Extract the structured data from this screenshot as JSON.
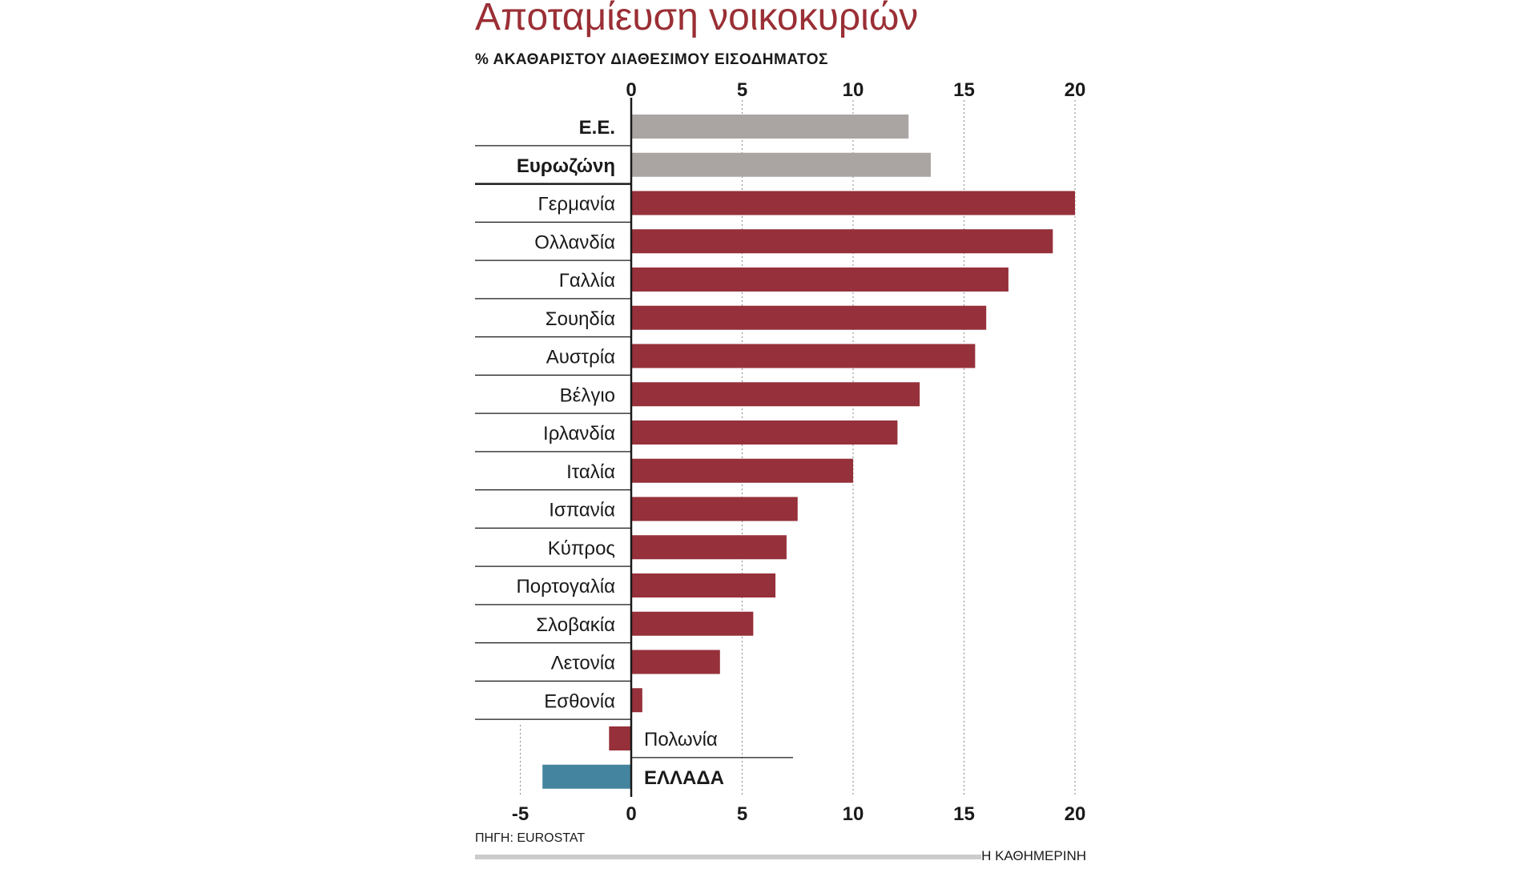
{
  "header": {
    "title": "Αποταμίευση νοικοκυριών",
    "subtitle": "% ΑΚΑΘΑΡΙΣΤΟΥ ΔΙΑΘΕΣΙΜΟΥ ΕΙΣΟΔΗΜΑΤΟΣ"
  },
  "footer": {
    "source": "ΠΗΓΗ: EUROSTAT",
    "brand": "Η ΚΑΘΗΜΕΡΙΝΗ"
  },
  "colors": {
    "title": "#9a2f35",
    "country_bar": "#96303a",
    "aggregate_bar": "#aaa5a3",
    "greece_bar": "#44849e",
    "gridline": "#888888",
    "axis": "#1a1a1a",
    "footer_rule": "#cccccc"
  },
  "chart_data": {
    "type": "bar",
    "orientation": "horizontal",
    "xlim": [
      -5,
      20
    ],
    "x_ticks": [
      -5,
      0,
      5,
      10,
      15,
      20
    ],
    "top_ticks": [
      0,
      5,
      10,
      15,
      20
    ],
    "grid": true,
    "categories": [
      "Ε.Ε.",
      "Ευρωζώνη",
      "Γερμανία",
      "Ολλανδία",
      "Γαλλία",
      "Σουηδία",
      "Αυστρία",
      "Βέλγιο",
      "Ιρλανδία",
      "Ιταλία",
      "Ισπανία",
      "Κύπρος",
      "Πορτογαλία",
      "Σλοβακία",
      "Λετονία",
      "Εσθονία",
      "Πολωνία",
      "ΕΛΛΑΔΑ"
    ],
    "values": [
      12.5,
      13.5,
      20.0,
      19.0,
      17.0,
      16.0,
      15.5,
      13.0,
      12.0,
      10.0,
      7.5,
      7.0,
      6.5,
      5.5,
      4.0,
      0.5,
      -1.0,
      -4.0
    ],
    "groups": [
      "aggregate",
      "aggregate",
      "country",
      "country",
      "country",
      "country",
      "country",
      "country",
      "country",
      "country",
      "country",
      "country",
      "country",
      "country",
      "country",
      "country",
      "country",
      "greece"
    ],
    "label_bold": [
      true,
      true,
      false,
      false,
      false,
      false,
      false,
      false,
      false,
      false,
      false,
      false,
      false,
      false,
      false,
      false,
      false,
      true
    ]
  }
}
